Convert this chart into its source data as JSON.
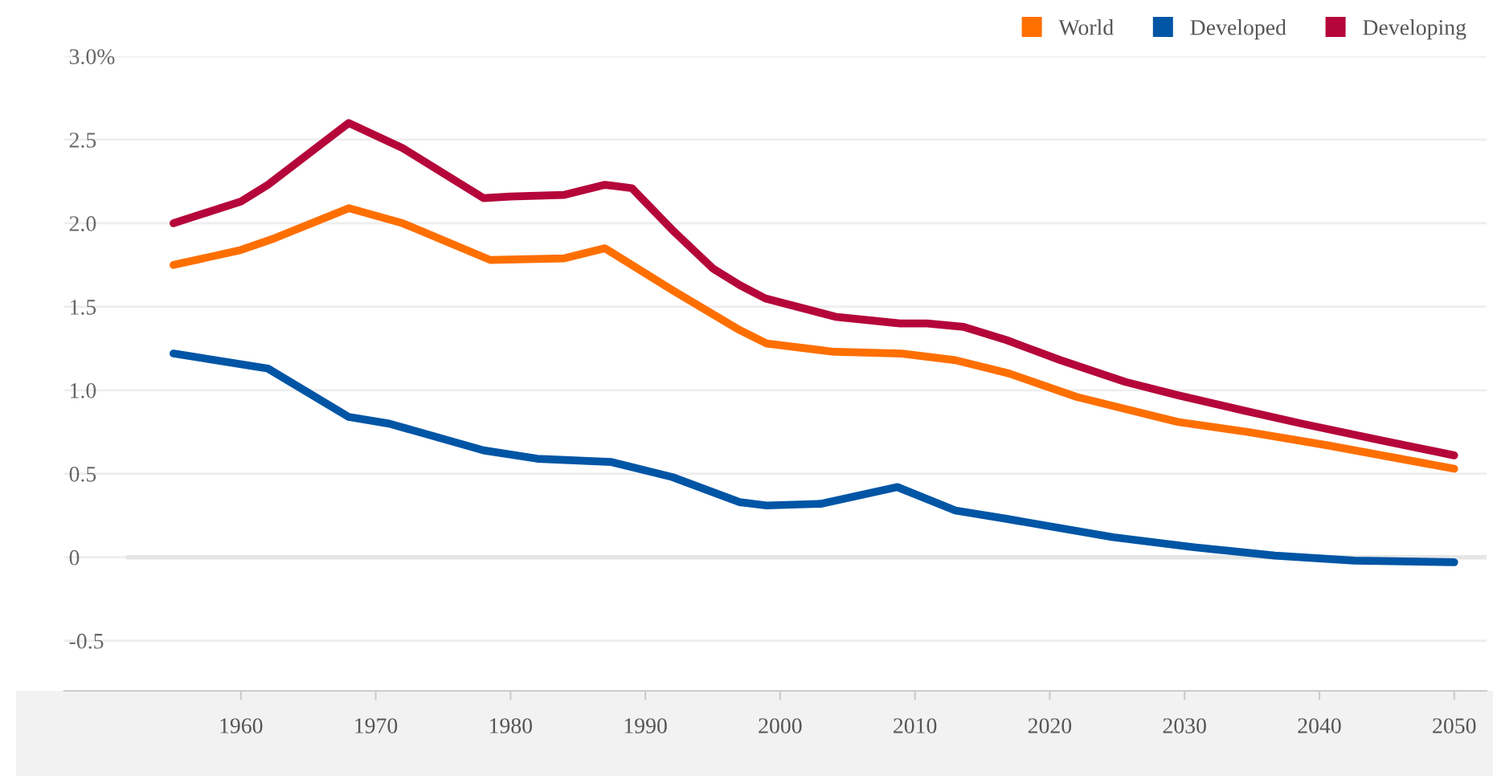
{
  "chart_data": {
    "type": "line",
    "x": [
      1955,
      1960,
      1962.5,
      1968,
      1972,
      1978.5,
      1984,
      1987,
      1992,
      1997,
      1999,
      2004,
      2009,
      2013,
      2017,
      2022,
      2029.5,
      2034.7,
      2040.6,
      2050
    ],
    "series": [
      {
        "name": "World",
        "color": "#ff6f00",
        "values": [
          1.75,
          1.84,
          1.91,
          2.09,
          2.0,
          1.78,
          1.79,
          1.85,
          1.6,
          1.36,
          1.28,
          1.23,
          1.22,
          1.18,
          1.1,
          0.96,
          0.81,
          0.75,
          0.67,
          0.53
        ]
      },
      {
        "name": "Developed",
        "color": "#0055a5",
        "x": [
          1955,
          1962,
          1968,
          1971,
          1978,
          1982,
          1987.5,
          1992,
          1997,
          1999,
          2003,
          2008.7,
          2013,
          2016.8,
          2024.7,
          2030.7,
          2036.7,
          2042.6,
          2050
        ],
        "values": [
          1.22,
          1.13,
          0.84,
          0.8,
          0.64,
          0.59,
          0.57,
          0.48,
          0.33,
          0.31,
          0.32,
          0.42,
          0.28,
          0.23,
          0.12,
          0.06,
          0.01,
          -0.02,
          -0.03
        ]
      },
      {
        "name": "Developing",
        "color": "#b5063a",
        "x": [
          1955,
          1960,
          1962,
          1968,
          1972,
          1978,
          1980,
          1984,
          1987,
          1989,
          1992,
          1995,
          1997,
          1998.9,
          2004.1,
          2008.9,
          2010.9,
          2013.6,
          2016.8,
          2020.8,
          2025.6,
          2029.5,
          2034.3,
          2038.7,
          2044.6,
          2050
        ],
        "values": [
          2.0,
          2.13,
          2.23,
          2.6,
          2.45,
          2.15,
          2.16,
          2.17,
          2.23,
          2.21,
          1.96,
          1.73,
          1.63,
          1.55,
          1.44,
          1.4,
          1.4,
          1.38,
          1.3,
          1.18,
          1.05,
          0.97,
          0.88,
          0.8,
          0.7,
          0.61
        ]
      }
    ],
    "xlim": [
      1946.9,
      2052.4
    ],
    "xticks": [
      1960,
      1970,
      1980,
      1990,
      2000,
      2010,
      2020,
      2030,
      2040,
      2050
    ],
    "ylim": [
      -0.8,
      3.0
    ],
    "yticks": [
      {
        "value": -0.5,
        "label": "-0.5"
      },
      {
        "value": 0,
        "label": "0"
      },
      {
        "value": 0.5,
        "label": "0.5"
      },
      {
        "value": 1.0,
        "label": "1.0"
      },
      {
        "value": 1.5,
        "label": "1.5"
      },
      {
        "value": 2.0,
        "label": "2.0"
      },
      {
        "value": 2.5,
        "label": "2.5"
      },
      {
        "value": 3.0,
        "label": "3.0%"
      }
    ],
    "ref_lines": [
      {
        "axis": "y",
        "value": 0,
        "color": "#e6e6e6"
      }
    ],
    "grid": "y",
    "legend": "top right",
    "marker": "none",
    "line_style": "solid"
  }
}
